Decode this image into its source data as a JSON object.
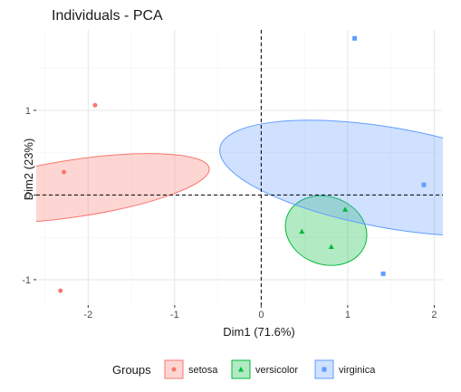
{
  "chart_data": {
    "type": "scatter",
    "title": "Individuals - PCA",
    "xlabel": "Dim1 (71.6%)",
    "ylabel": "Dim2 (23%)",
    "xlim": [
      -2.6,
      2.1
    ],
    "ylim": [
      -1.3,
      1.95
    ],
    "xticks": [
      -2,
      -1,
      0,
      1,
      2
    ],
    "yticks": [
      -1,
      0,
      1
    ],
    "grid": true,
    "reference_lines": {
      "x": 0,
      "y": 0,
      "style": "dashed"
    },
    "legend": {
      "title": "Groups",
      "position": "bottom",
      "entries": [
        "setosa",
        "versicolor",
        "virginica"
      ]
    },
    "series": [
      {
        "name": "setosa",
        "color": "#F8766D",
        "fill": "#F8766D",
        "marker": "circle",
        "points": [
          [
            -1.92,
            1.06
          ],
          [
            -2.28,
            0.27
          ],
          [
            -2.32,
            -1.13
          ]
        ],
        "ellipse": {
          "center": [
            -2.15,
            0.08
          ],
          "rx": 0.33,
          "ry": 1.6,
          "angle": 81.5
        }
      },
      {
        "name": "versicolor",
        "color": "#00BA38",
        "fill": "#00BA38",
        "marker": "triangle",
        "points": [
          [
            0.47,
            -0.43
          ],
          [
            0.81,
            -0.61
          ],
          [
            0.97,
            -0.17
          ]
        ],
        "ellipse": {
          "center": [
            0.75,
            -0.42
          ],
          "rx": 0.48,
          "ry": 0.4,
          "angle": 20
        }
      },
      {
        "name": "virginica",
        "color": "#619CFF",
        "fill": "#619CFF",
        "marker": "square",
        "points": [
          [
            1.08,
            1.85
          ],
          [
            1.88,
            0.12
          ],
          [
            1.41,
            -0.93
          ]
        ],
        "ellipse": {
          "center": [
            1.5,
            0.2
          ],
          "rx": 0.58,
          "ry": 2.05,
          "angle": 100
        }
      }
    ]
  }
}
